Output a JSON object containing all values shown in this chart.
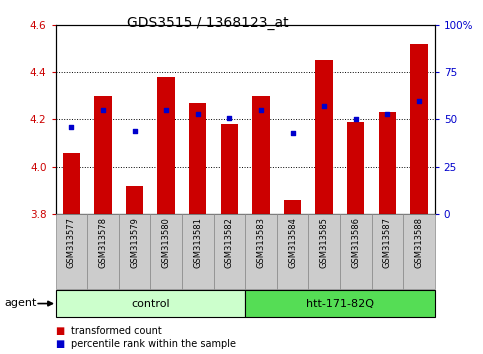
{
  "title": "GDS3515 / 1368123_at",
  "samples": [
    "GSM313577",
    "GSM313578",
    "GSM313579",
    "GSM313580",
    "GSM313581",
    "GSM313582",
    "GSM313583",
    "GSM313584",
    "GSM313585",
    "GSM313586",
    "GSM313587",
    "GSM313588"
  ],
  "bar_values": [
    4.06,
    4.3,
    3.92,
    4.38,
    4.27,
    4.18,
    4.3,
    3.86,
    4.45,
    4.19,
    4.23,
    4.52
  ],
  "percentile_pct": [
    46,
    55,
    44,
    55,
    53,
    51,
    55,
    43,
    57,
    50,
    53,
    60
  ],
  "bar_color": "#cc0000",
  "pct_color": "#0000cc",
  "ymin": 3.8,
  "ymax": 4.6,
  "yticks": [
    3.8,
    4.0,
    4.2,
    4.4,
    4.6
  ],
  "y2min": 0,
  "y2max": 100,
  "y2ticks": [
    0,
    25,
    50,
    75,
    100
  ],
  "y2ticklabels": [
    "0",
    "25",
    "50",
    "75",
    "100%"
  ],
  "grid_lines": [
    4.0,
    4.2,
    4.4
  ],
  "groups": [
    {
      "label": "control",
      "start": 0,
      "end": 5,
      "color": "#ccffcc",
      "edge": "#aaddaa"
    },
    {
      "label": "htt-171-82Q",
      "start": 6,
      "end": 11,
      "color": "#55dd55",
      "edge": "#33bb33"
    }
  ],
  "agent_label": "agent",
  "legend_items": [
    {
      "color": "#cc0000",
      "label": "transformed count"
    },
    {
      "color": "#0000cc",
      "label": "percentile rank within the sample"
    }
  ],
  "bar_width": 0.55,
  "background_color": "#ffffff",
  "tick_label_bg": "#cccccc",
  "ylabel_color": "#cc0000",
  "y2label_color": "#0000cc",
  "title_fontsize": 10,
  "tick_fontsize": 7.5,
  "sample_fontsize": 6,
  "group_fontsize": 8,
  "legend_fontsize": 7
}
